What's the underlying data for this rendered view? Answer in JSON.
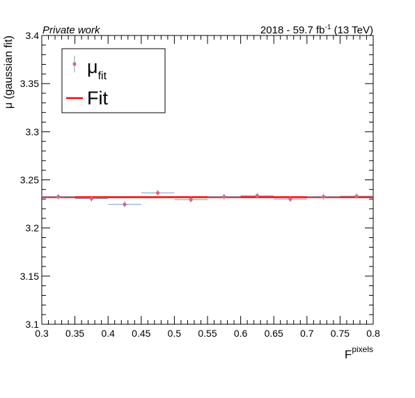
{
  "header": {
    "left": "Private work",
    "right_main": "2018 - 59.7 fb",
    "right_sup": "-1",
    "right_tail": " (13 TeV)"
  },
  "axes": {
    "ylabel": "μ (gaussian fit)",
    "xlabel_main": "F",
    "xlabel_sup": "pixels"
  },
  "legend": {
    "entries": [
      {
        "symbol": "μ",
        "sub": "fit"
      },
      {
        "label": "Fit"
      }
    ]
  },
  "colors": {
    "marker": "#d9677a",
    "error_bar": "#7b97b8",
    "fit": "#ff0000"
  },
  "chart_data": {
    "type": "scatter",
    "x_ticks": [
      "0.3",
      "0.35",
      "0.4",
      "0.45",
      "0.5",
      "0.55",
      "0.6",
      "0.65",
      "0.7",
      "0.75",
      "0.8"
    ],
    "y_ticks": [
      "3.1",
      "3.15",
      "3.2",
      "3.25",
      "3.3",
      "3.35",
      "3.4"
    ],
    "xlim": [
      0.3,
      0.8
    ],
    "ylim": [
      3.1,
      3.4
    ],
    "points": [
      {
        "x": 0.325,
        "y": 3.2325,
        "xerr": 0.025,
        "yerr": 0.003
      },
      {
        "x": 0.375,
        "y": 3.2305,
        "xerr": 0.025,
        "yerr": 0.003
      },
      {
        "x": 0.425,
        "y": 3.2245,
        "xerr": 0.025,
        "yerr": 0.003
      },
      {
        "x": 0.475,
        "y": 3.2365,
        "xerr": 0.025,
        "yerr": 0.003
      },
      {
        "x": 0.525,
        "y": 3.2295,
        "xerr": 0.025,
        "yerr": 0.003
      },
      {
        "x": 0.575,
        "y": 3.2325,
        "xerr": 0.025,
        "yerr": 0.003
      },
      {
        "x": 0.625,
        "y": 3.2335,
        "xerr": 0.025,
        "yerr": 0.003
      },
      {
        "x": 0.675,
        "y": 3.23,
        "xerr": 0.025,
        "yerr": 0.003
      },
      {
        "x": 0.725,
        "y": 3.2325,
        "xerr": 0.025,
        "yerr": 0.003
      },
      {
        "x": 0.775,
        "y": 3.233,
        "xerr": 0.025,
        "yerr": 0.003
      }
    ],
    "fit": {
      "type": "constant",
      "value": 3.232
    }
  }
}
